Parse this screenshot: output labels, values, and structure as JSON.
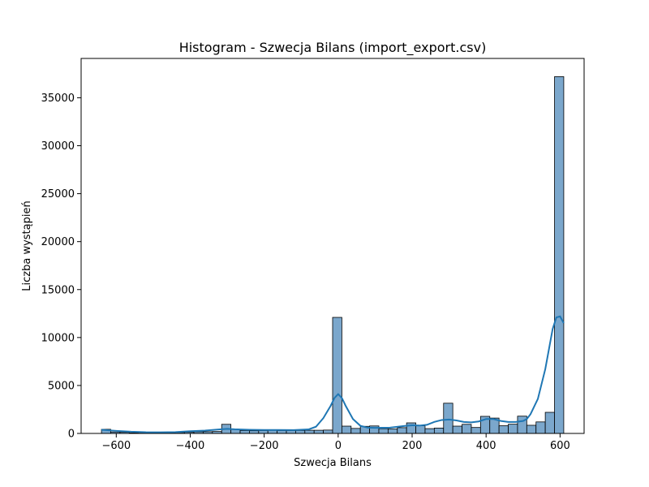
{
  "chart_data": {
    "type": "histogram",
    "title": "Histogram - Szwecja Bilans (import_export.csv)",
    "xlabel": "Szwecja Bilans",
    "ylabel": "Liczba wystąpień",
    "xlim": [
      -695,
      665
    ],
    "ylim": [
      0,
      39100
    ],
    "xticks": [
      -600,
      -400,
      -200,
      0,
      200,
      400,
      600
    ],
    "yticks": [
      0,
      5000,
      10000,
      15000,
      20000,
      25000,
      30000,
      35000
    ],
    "grid": false,
    "bar_color": "#7ba7cc",
    "bar_edge_color": "#000000",
    "kde_color": "#1f77b4",
    "bins": [
      {
        "x0": -640,
        "x1": -615,
        "count": 430
      },
      {
        "x0": -615,
        "x1": -590,
        "count": 150
      },
      {
        "x0": -590,
        "x1": -565,
        "count": 120
      },
      {
        "x0": -565,
        "x1": -540,
        "count": 60
      },
      {
        "x0": -540,
        "x1": -515,
        "count": 40
      },
      {
        "x0": -515,
        "x1": -490,
        "count": 40
      },
      {
        "x0": -490,
        "x1": -465,
        "count": 60
      },
      {
        "x0": -465,
        "x1": -440,
        "count": 80
      },
      {
        "x0": -440,
        "x1": -415,
        "count": 100
      },
      {
        "x0": -415,
        "x1": -390,
        "count": 130
      },
      {
        "x0": -390,
        "x1": -365,
        "count": 170
      },
      {
        "x0": -365,
        "x1": -340,
        "count": 180
      },
      {
        "x0": -340,
        "x1": -315,
        "count": 200
      },
      {
        "x0": -315,
        "x1": -290,
        "count": 950
      },
      {
        "x0": -290,
        "x1": -265,
        "count": 420
      },
      {
        "x0": -265,
        "x1": -240,
        "count": 300
      },
      {
        "x0": -240,
        "x1": -215,
        "count": 280
      },
      {
        "x0": -215,
        "x1": -190,
        "count": 300
      },
      {
        "x0": -190,
        "x1": -165,
        "count": 320
      },
      {
        "x0": -165,
        "x1": -140,
        "count": 300
      },
      {
        "x0": -140,
        "x1": -115,
        "count": 300
      },
      {
        "x0": -115,
        "x1": -90,
        "count": 310
      },
      {
        "x0": -90,
        "x1": -65,
        "count": 330
      },
      {
        "x0": -65,
        "x1": -40,
        "count": 330
      },
      {
        "x0": -40,
        "x1": -15,
        "count": 350
      },
      {
        "x0": -15,
        "x1": 10,
        "count": 12100
      },
      {
        "x0": 10,
        "x1": 35,
        "count": 760
      },
      {
        "x0": 35,
        "x1": 60,
        "count": 520
      },
      {
        "x0": 60,
        "x1": 85,
        "count": 740
      },
      {
        "x0": 85,
        "x1": 110,
        "count": 780
      },
      {
        "x0": 110,
        "x1": 135,
        "count": 500
      },
      {
        "x0": 135,
        "x1": 160,
        "count": 460
      },
      {
        "x0": 160,
        "x1": 185,
        "count": 600
      },
      {
        "x0": 185,
        "x1": 210,
        "count": 1100
      },
      {
        "x0": 210,
        "x1": 235,
        "count": 800
      },
      {
        "x0": 235,
        "x1": 260,
        "count": 500
      },
      {
        "x0": 260,
        "x1": 285,
        "count": 560
      },
      {
        "x0": 285,
        "x1": 310,
        "count": 3150
      },
      {
        "x0": 310,
        "x1": 335,
        "count": 760
      },
      {
        "x0": 335,
        "x1": 360,
        "count": 950
      },
      {
        "x0": 360,
        "x1": 385,
        "count": 620
      },
      {
        "x0": 385,
        "x1": 410,
        "count": 1780
      },
      {
        "x0": 410,
        "x1": 435,
        "count": 1600
      },
      {
        "x0": 435,
        "x1": 460,
        "count": 800
      },
      {
        "x0": 460,
        "x1": 485,
        "count": 960
      },
      {
        "x0": 485,
        "x1": 510,
        "count": 1800
      },
      {
        "x0": 510,
        "x1": 535,
        "count": 850
      },
      {
        "x0": 535,
        "x1": 560,
        "count": 1200
      },
      {
        "x0": 560,
        "x1": 585,
        "count": 2200
      },
      {
        "x0": 585,
        "x1": 610,
        "count": 37200
      }
    ],
    "kde": {
      "x": [
        -640,
        -600,
        -560,
        -520,
        -480,
        -440,
        -400,
        -360,
        -320,
        -300,
        -280,
        -240,
        -200,
        -160,
        -120,
        -80,
        -60,
        -40,
        -20,
        -10,
        0,
        10,
        20,
        40,
        60,
        80,
        100,
        140,
        180,
        200,
        220,
        240,
        260,
        280,
        300,
        320,
        340,
        360,
        380,
        400,
        420,
        440,
        460,
        480,
        500,
        510,
        520,
        540,
        560,
        570,
        580,
        590,
        600,
        610
      ],
      "y": [
        380,
        270,
        180,
        130,
        120,
        140,
        230,
        300,
        420,
        480,
        430,
        380,
        360,
        360,
        350,
        420,
        700,
        1600,
        2900,
        3700,
        4100,
        3700,
        2900,
        1500,
        800,
        600,
        580,
        600,
        780,
        850,
        820,
        900,
        1200,
        1400,
        1450,
        1350,
        1200,
        1150,
        1250,
        1500,
        1500,
        1300,
        1200,
        1200,
        1300,
        1500,
        2000,
        3600,
        6700,
        8800,
        10900,
        12100,
        12200,
        11500
      ]
    }
  }
}
